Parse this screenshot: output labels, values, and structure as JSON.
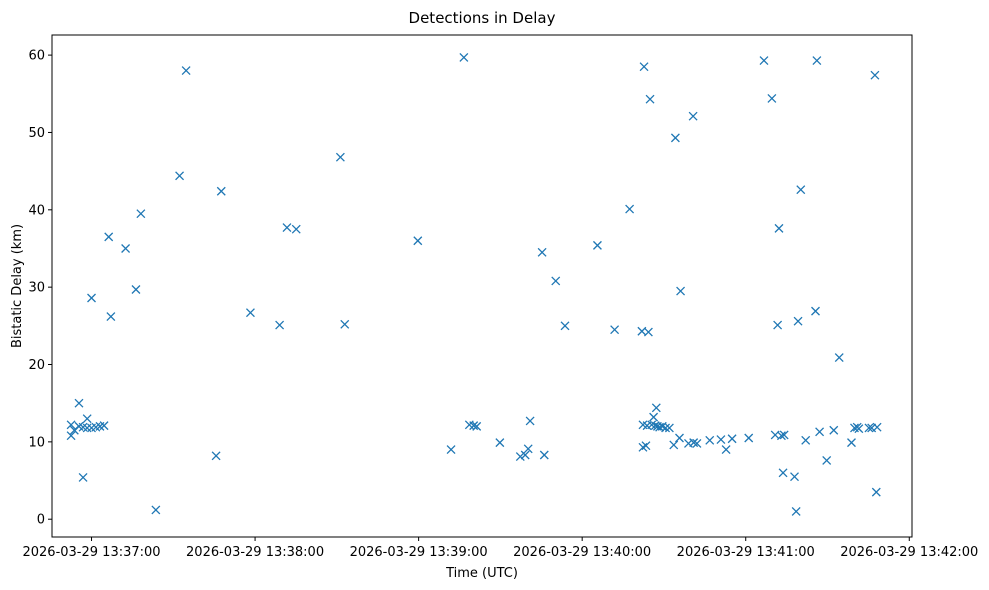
{
  "chart_data": {
    "type": "scatter",
    "title": "Detections in Delay",
    "xlabel": "Time (UTC)",
    "ylabel": "Bistatic Delay (km)",
    "x_unit": "seconds since 2026-03-29 13:37:00",
    "xlim": [
      -14.5,
      301
    ],
    "ylim": [
      -2.3,
      62.6
    ],
    "x_ticks": [
      {
        "value": 0,
        "label": "2026-03-29 13:37:00"
      },
      {
        "value": 60,
        "label": "2026-03-29 13:38:00"
      },
      {
        "value": 120,
        "label": "2026-03-29 13:39:00"
      },
      {
        "value": 180,
        "label": "2026-03-29 13:40:00"
      },
      {
        "value": 240,
        "label": "2026-03-29 13:41:00"
      },
      {
        "value": 300,
        "label": "2026-03-29 13:42:00"
      }
    ],
    "y_ticks": [
      {
        "value": 0,
        "label": "0"
      },
      {
        "value": 10,
        "label": "10"
      },
      {
        "value": 20,
        "label": "20"
      },
      {
        "value": 30,
        "label": "30"
      },
      {
        "value": 40,
        "label": "40"
      },
      {
        "value": 50,
        "label": "50"
      },
      {
        "value": 60,
        "label": "60"
      }
    ],
    "marker": "x",
    "color": "#1f77b4",
    "series": [
      {
        "name": "Detections",
        "points": [
          [
            -7.5,
            12.2
          ],
          [
            -7.5,
            10.8
          ],
          [
            -6.3,
            11.5
          ],
          [
            -4.6,
            15.0
          ],
          [
            -4.6,
            12.0
          ],
          [
            -3.1,
            5.4
          ],
          [
            -3.1,
            11.9
          ],
          [
            -1.6,
            13.0
          ],
          [
            -1.6,
            11.8
          ],
          [
            0.0,
            28.6
          ],
          [
            0.0,
            11.8
          ],
          [
            1.6,
            11.9
          ],
          [
            3.1,
            12.0
          ],
          [
            4.6,
            12.1
          ],
          [
            6.3,
            36.5
          ],
          [
            7.1,
            26.2
          ],
          [
            12.5,
            35.0
          ],
          [
            16.3,
            29.7
          ],
          [
            18.1,
            39.5
          ],
          [
            23.6,
            1.2
          ],
          [
            32.3,
            44.4
          ],
          [
            34.7,
            58.0
          ],
          [
            45.7,
            8.2
          ],
          [
            47.6,
            42.4
          ],
          [
            58.3,
            26.7
          ],
          [
            69.0,
            25.1
          ],
          [
            71.7,
            37.7
          ],
          [
            75.1,
            37.5
          ],
          [
            91.3,
            46.8
          ],
          [
            92.9,
            25.2
          ],
          [
            119.7,
            36.0
          ],
          [
            131.9,
            9.0
          ],
          [
            136.6,
            59.7
          ],
          [
            138.6,
            12.2
          ],
          [
            140.2,
            12.1
          ],
          [
            141.3,
            12.0
          ],
          [
            149.8,
            9.9
          ],
          [
            157.3,
            8.1
          ],
          [
            159.1,
            8.3
          ],
          [
            160.2,
            9.1
          ],
          [
            160.9,
            12.7
          ],
          [
            165.3,
            34.5
          ],
          [
            166.1,
            8.3
          ],
          [
            170.3,
            30.8
          ],
          [
            173.7,
            25.0
          ],
          [
            185.6,
            35.4
          ],
          [
            191.9,
            24.5
          ],
          [
            197.4,
            40.1
          ],
          [
            201.9,
            24.3
          ],
          [
            202.3,
            12.2
          ],
          [
            202.3,
            9.3
          ],
          [
            202.7,
            58.5
          ],
          [
            203.4,
            9.5
          ],
          [
            203.8,
            12.1
          ],
          [
            204.3,
            24.2
          ],
          [
            204.9,
            54.3
          ],
          [
            205.5,
            12.2
          ],
          [
            206.2,
            13.2
          ],
          [
            206.8,
            12.1
          ],
          [
            207.2,
            14.4
          ],
          [
            207.6,
            12.0
          ],
          [
            208.4,
            11.9
          ],
          [
            209.4,
            12.0
          ],
          [
            210.6,
            11.8
          ],
          [
            212.0,
            11.8
          ],
          [
            213.6,
            9.6
          ],
          [
            214.2,
            49.3
          ],
          [
            215.7,
            10.5
          ],
          [
            216.1,
            29.5
          ],
          [
            219.0,
            9.8
          ],
          [
            220.7,
            52.1
          ],
          [
            220.9,
            9.9
          ],
          [
            222.1,
            9.8
          ],
          [
            226.8,
            10.2
          ],
          [
            230.9,
            10.3
          ],
          [
            232.8,
            9.0
          ],
          [
            235.0,
            10.4
          ],
          [
            241.1,
            10.5
          ],
          [
            246.7,
            59.3
          ],
          [
            249.6,
            54.4
          ],
          [
            250.8,
            10.9
          ],
          [
            251.7,
            25.1
          ],
          [
            252.2,
            37.6
          ],
          [
            253.1,
            10.8
          ],
          [
            253.7,
            6.0
          ],
          [
            254.1,
            10.9
          ],
          [
            257.9,
            5.5
          ],
          [
            258.5,
            1.0
          ],
          [
            259.2,
            25.6
          ],
          [
            260.2,
            42.6
          ],
          [
            262.0,
            10.2
          ],
          [
            265.6,
            26.9
          ],
          [
            266.1,
            59.3
          ],
          [
            267.1,
            11.3
          ],
          [
            269.7,
            7.6
          ],
          [
            272.3,
            11.5
          ],
          [
            274.3,
            20.9
          ],
          [
            278.8,
            9.9
          ],
          [
            279.9,
            11.8
          ],
          [
            280.9,
            11.9
          ],
          [
            281.5,
            11.7
          ],
          [
            285.2,
            11.8
          ],
          [
            286.2,
            11.8
          ],
          [
            287.4,
            57.4
          ],
          [
            287.9,
            3.5
          ],
          [
            288.2,
            11.9
          ]
        ]
      }
    ]
  }
}
